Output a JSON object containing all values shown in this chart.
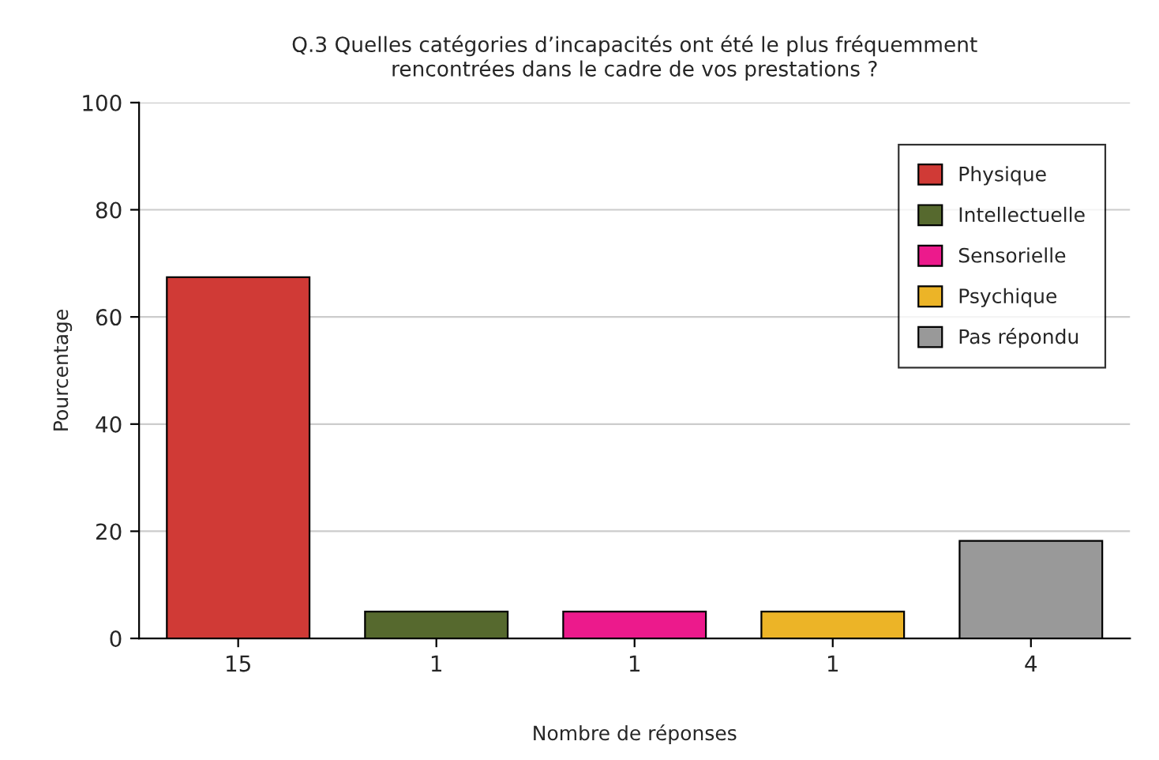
{
  "chart_data": {
    "type": "bar",
    "title": "Q.3 Quelles catégories d’incapacités ont été le plus fréquemment\nrencontrées dans le cadre de vos prestations ?",
    "xlabel": "Nombre de réponses",
    "ylabel": "Pourcentage",
    "categories": [
      "15",
      "1",
      "1",
      "1",
      "4"
    ],
    "series": [
      {
        "name": "Physique",
        "color": "#d03a36",
        "values": [
          67.4,
          null,
          null,
          null,
          null
        ]
      },
      {
        "name": "Intellectuelle",
        "color": "#56692e",
        "values": [
          null,
          5,
          null,
          null,
          null
        ]
      },
      {
        "name": "Sensorielle",
        "color": "#ec1a8c",
        "values": [
          null,
          null,
          5,
          null,
          null
        ]
      },
      {
        "name": "Psychique",
        "color": "#ecb427",
        "values": [
          null,
          null,
          null,
          5,
          null
        ]
      },
      {
        "name": "Pas répondu",
        "color": "#999999",
        "values": [
          null,
          null,
          null,
          null,
          18.2
        ]
      }
    ],
    "ylim": [
      0,
      100
    ],
    "yticks": [
      0,
      20,
      40,
      60,
      80,
      100
    ],
    "grid": "y",
    "legend": "top right"
  }
}
